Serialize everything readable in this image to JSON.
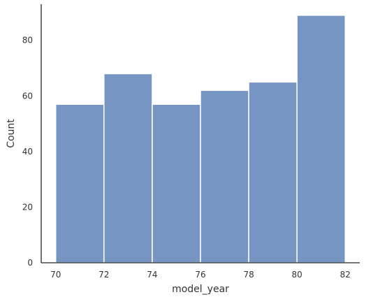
{
  "chart_data": {
    "type": "bar",
    "title": "",
    "xlabel": "model_year",
    "ylabel": "Count",
    "bins": [
      {
        "start": 70,
        "end": 72,
        "value": 57
      },
      {
        "start": 72,
        "end": 74,
        "value": 68
      },
      {
        "start": 74,
        "end": 76,
        "value": 57
      },
      {
        "start": 76,
        "end": 78,
        "value": 62
      },
      {
        "start": 78,
        "end": 80,
        "value": 65
      },
      {
        "start": 80,
        "end": 82,
        "value": 89
      }
    ],
    "xticks": [
      70,
      72,
      74,
      76,
      78,
      80,
      82
    ],
    "yticks": [
      0,
      20,
      40,
      60,
      80
    ],
    "xlim": [
      69.4,
      82.6
    ],
    "ylim": [
      0,
      93
    ],
    "grid": false,
    "bar_color": "#7695c3",
    "bar_edge_color": "#ffffff",
    "axis_color": "#262626",
    "text_color": "#333333"
  }
}
